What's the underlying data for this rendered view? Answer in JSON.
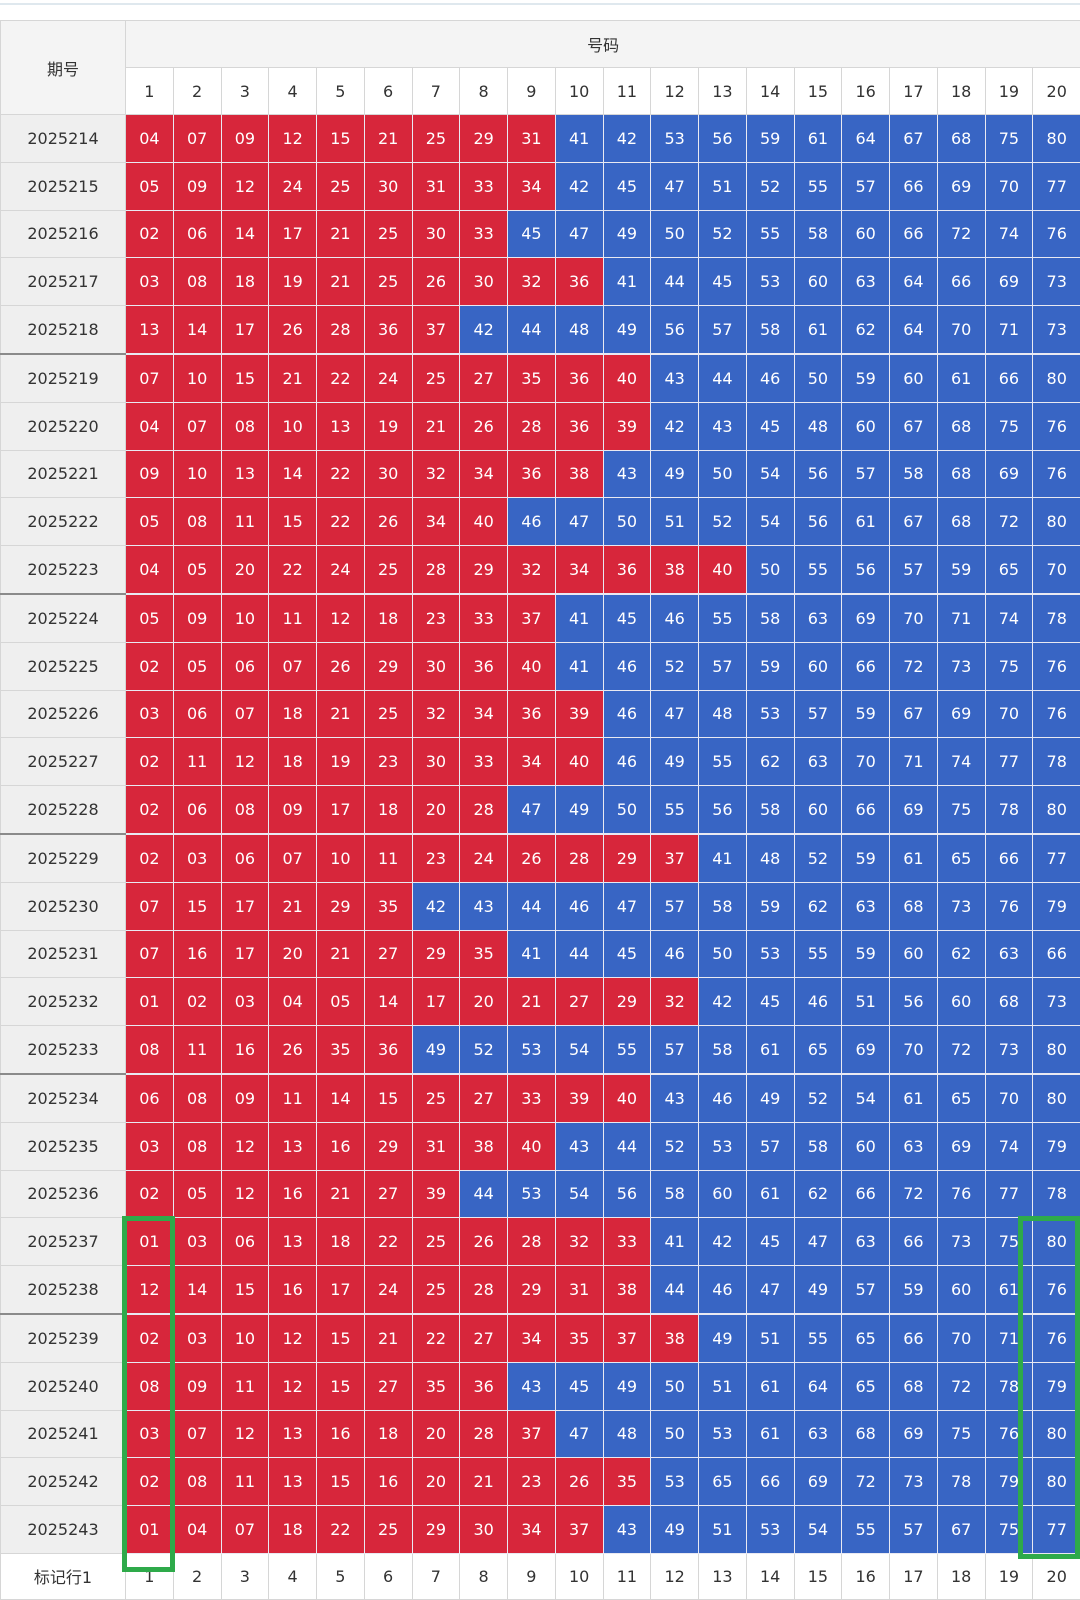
{
  "header": {
    "period_label": "期号",
    "numbers_label": "号码",
    "columns": [
      1,
      2,
      3,
      4,
      5,
      6,
      7,
      8,
      9,
      10,
      11,
      12,
      13,
      14,
      15,
      16,
      17,
      18,
      19,
      20
    ]
  },
  "rows": [
    {
      "period": "2025214",
      "numbers": [
        "04",
        "07",
        "09",
        "12",
        "15",
        "21",
        "25",
        "29",
        "31",
        "41",
        "42",
        "53",
        "56",
        "59",
        "61",
        "64",
        "67",
        "68",
        "75",
        "80"
      ]
    },
    {
      "period": "2025215",
      "numbers": [
        "05",
        "09",
        "12",
        "24",
        "25",
        "30",
        "31",
        "33",
        "34",
        "42",
        "45",
        "47",
        "51",
        "52",
        "55",
        "57",
        "66",
        "69",
        "70",
        "77"
      ]
    },
    {
      "period": "2025216",
      "numbers": [
        "02",
        "06",
        "14",
        "17",
        "21",
        "25",
        "30",
        "33",
        "45",
        "47",
        "49",
        "50",
        "52",
        "55",
        "58",
        "60",
        "66",
        "72",
        "74",
        "76"
      ]
    },
    {
      "period": "2025217",
      "numbers": [
        "03",
        "08",
        "18",
        "19",
        "21",
        "25",
        "26",
        "30",
        "32",
        "36",
        "41",
        "44",
        "45",
        "53",
        "60",
        "63",
        "64",
        "66",
        "69",
        "73"
      ]
    },
    {
      "period": "2025218",
      "numbers": [
        "13",
        "14",
        "17",
        "26",
        "28",
        "36",
        "37",
        "42",
        "44",
        "48",
        "49",
        "56",
        "57",
        "58",
        "61",
        "62",
        "64",
        "70",
        "71",
        "73"
      ]
    },
    {
      "period": "2025219",
      "numbers": [
        "07",
        "10",
        "15",
        "21",
        "22",
        "24",
        "25",
        "27",
        "35",
        "36",
        "40",
        "43",
        "44",
        "46",
        "50",
        "59",
        "60",
        "61",
        "66",
        "80"
      ]
    },
    {
      "period": "2025220",
      "numbers": [
        "04",
        "07",
        "08",
        "10",
        "13",
        "19",
        "21",
        "26",
        "28",
        "36",
        "39",
        "42",
        "43",
        "45",
        "48",
        "60",
        "67",
        "68",
        "75",
        "76"
      ]
    },
    {
      "period": "2025221",
      "numbers": [
        "09",
        "10",
        "13",
        "14",
        "22",
        "30",
        "32",
        "34",
        "36",
        "38",
        "43",
        "49",
        "50",
        "54",
        "56",
        "57",
        "58",
        "68",
        "69",
        "76"
      ]
    },
    {
      "period": "2025222",
      "numbers": [
        "05",
        "08",
        "11",
        "15",
        "22",
        "26",
        "34",
        "40",
        "46",
        "47",
        "50",
        "51",
        "52",
        "54",
        "56",
        "61",
        "67",
        "68",
        "72",
        "80"
      ]
    },
    {
      "period": "2025223",
      "numbers": [
        "04",
        "05",
        "20",
        "22",
        "24",
        "25",
        "28",
        "29",
        "32",
        "34",
        "36",
        "38",
        "40",
        "50",
        "55",
        "56",
        "57",
        "59",
        "65",
        "70"
      ]
    },
    {
      "period": "2025224",
      "numbers": [
        "05",
        "09",
        "10",
        "11",
        "12",
        "18",
        "23",
        "33",
        "37",
        "41",
        "45",
        "46",
        "55",
        "58",
        "63",
        "69",
        "70",
        "71",
        "74",
        "78"
      ]
    },
    {
      "period": "2025225",
      "numbers": [
        "02",
        "05",
        "06",
        "07",
        "26",
        "29",
        "30",
        "36",
        "40",
        "41",
        "46",
        "52",
        "57",
        "59",
        "60",
        "66",
        "72",
        "73",
        "75",
        "76"
      ]
    },
    {
      "period": "2025226",
      "numbers": [
        "03",
        "06",
        "07",
        "18",
        "21",
        "25",
        "32",
        "34",
        "36",
        "39",
        "46",
        "47",
        "48",
        "53",
        "57",
        "59",
        "67",
        "69",
        "70",
        "76"
      ]
    },
    {
      "period": "2025227",
      "numbers": [
        "02",
        "11",
        "12",
        "18",
        "19",
        "23",
        "30",
        "33",
        "34",
        "40",
        "46",
        "49",
        "55",
        "62",
        "63",
        "70",
        "71",
        "74",
        "77",
        "78"
      ]
    },
    {
      "period": "2025228",
      "numbers": [
        "02",
        "06",
        "08",
        "09",
        "17",
        "18",
        "20",
        "28",
        "47",
        "49",
        "50",
        "55",
        "56",
        "58",
        "60",
        "66",
        "69",
        "75",
        "78",
        "80"
      ]
    },
    {
      "period": "2025229",
      "numbers": [
        "02",
        "03",
        "06",
        "07",
        "10",
        "11",
        "23",
        "24",
        "26",
        "28",
        "29",
        "37",
        "41",
        "48",
        "52",
        "59",
        "61",
        "65",
        "66",
        "77"
      ]
    },
    {
      "period": "2025230",
      "numbers": [
        "07",
        "15",
        "17",
        "21",
        "29",
        "35",
        "42",
        "43",
        "44",
        "46",
        "47",
        "57",
        "58",
        "59",
        "62",
        "63",
        "68",
        "73",
        "76",
        "79"
      ]
    },
    {
      "period": "2025231",
      "numbers": [
        "07",
        "16",
        "17",
        "20",
        "21",
        "27",
        "29",
        "35",
        "41",
        "44",
        "45",
        "46",
        "50",
        "53",
        "55",
        "59",
        "60",
        "62",
        "63",
        "66"
      ]
    },
    {
      "period": "2025232",
      "numbers": [
        "01",
        "02",
        "03",
        "04",
        "05",
        "14",
        "17",
        "20",
        "21",
        "27",
        "29",
        "32",
        "42",
        "45",
        "46",
        "51",
        "56",
        "60",
        "68",
        "73"
      ]
    },
    {
      "period": "2025233",
      "numbers": [
        "08",
        "11",
        "16",
        "26",
        "35",
        "36",
        "49",
        "52",
        "53",
        "54",
        "55",
        "57",
        "58",
        "61",
        "65",
        "69",
        "70",
        "72",
        "73",
        "80"
      ]
    },
    {
      "period": "2025234",
      "numbers": [
        "06",
        "08",
        "09",
        "11",
        "14",
        "15",
        "25",
        "27",
        "33",
        "39",
        "40",
        "43",
        "46",
        "49",
        "52",
        "54",
        "61",
        "65",
        "70",
        "80"
      ]
    },
    {
      "period": "2025235",
      "numbers": [
        "03",
        "08",
        "12",
        "13",
        "16",
        "29",
        "31",
        "38",
        "40",
        "43",
        "44",
        "52",
        "53",
        "57",
        "58",
        "60",
        "63",
        "69",
        "74",
        "79"
      ]
    },
    {
      "period": "2025236",
      "numbers": [
        "02",
        "05",
        "12",
        "16",
        "21",
        "27",
        "39",
        "44",
        "53",
        "54",
        "56",
        "58",
        "60",
        "61",
        "62",
        "66",
        "72",
        "76",
        "77",
        "78"
      ]
    },
    {
      "period": "2025237",
      "numbers": [
        "01",
        "03",
        "06",
        "13",
        "18",
        "22",
        "25",
        "26",
        "28",
        "32",
        "33",
        "41",
        "42",
        "45",
        "47",
        "63",
        "66",
        "73",
        "75",
        "80"
      ]
    },
    {
      "period": "2025238",
      "numbers": [
        "12",
        "14",
        "15",
        "16",
        "17",
        "24",
        "25",
        "28",
        "29",
        "31",
        "38",
        "44",
        "46",
        "47",
        "49",
        "57",
        "59",
        "60",
        "61",
        "76"
      ]
    },
    {
      "period": "2025239",
      "numbers": [
        "02",
        "03",
        "10",
        "12",
        "15",
        "21",
        "22",
        "27",
        "34",
        "35",
        "37",
        "38",
        "49",
        "51",
        "55",
        "65",
        "66",
        "70",
        "71",
        "76"
      ]
    },
    {
      "period": "2025240",
      "numbers": [
        "08",
        "09",
        "11",
        "12",
        "15",
        "27",
        "35",
        "36",
        "43",
        "45",
        "49",
        "50",
        "51",
        "61",
        "64",
        "65",
        "68",
        "72",
        "78",
        "79"
      ]
    },
    {
      "period": "2025241",
      "numbers": [
        "03",
        "07",
        "12",
        "13",
        "16",
        "18",
        "20",
        "28",
        "37",
        "47",
        "48",
        "50",
        "53",
        "61",
        "63",
        "68",
        "69",
        "75",
        "76",
        "80"
      ]
    },
    {
      "period": "2025242",
      "numbers": [
        "02",
        "08",
        "11",
        "13",
        "15",
        "16",
        "20",
        "21",
        "23",
        "26",
        "35",
        "53",
        "65",
        "66",
        "69",
        "72",
        "73",
        "78",
        "79",
        "80"
      ]
    },
    {
      "period": "2025243",
      "numbers": [
        "01",
        "04",
        "07",
        "18",
        "22",
        "25",
        "29",
        "30",
        "34",
        "37",
        "43",
        "49",
        "51",
        "53",
        "54",
        "55",
        "57",
        "67",
        "75",
        "77"
      ]
    }
  ],
  "footer": {
    "label": "标记行1",
    "columns": [
      1,
      2,
      3,
      4,
      5,
      6,
      7,
      8,
      9,
      10,
      11,
      12,
      13,
      14,
      15,
      16,
      17,
      18,
      19,
      20
    ]
  }
}
